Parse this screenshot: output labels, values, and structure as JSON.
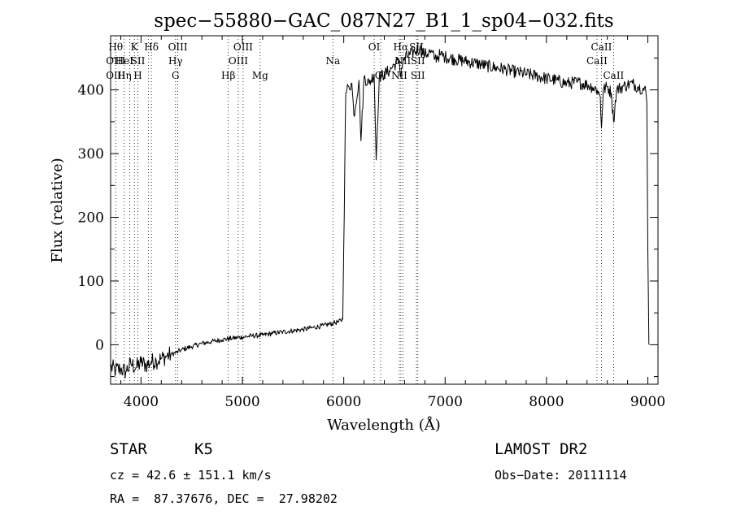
{
  "chart_data": {
    "type": "line",
    "title": "spec−55880−GAC_087N27_B1_1_sp04−032.fits",
    "xlabel": "Wavelength (Å)",
    "ylabel": "Flux (relative)",
    "xlim": [
      3700,
      9100
    ],
    "ylim": [
      -62,
      485
    ],
    "xticks": [
      4000,
      5000,
      6000,
      7000,
      8000,
      9000
    ],
    "xticklabels": [
      "4000",
      "5000",
      "6000",
      "7000",
      "8000",
      "9000"
    ],
    "yticks": [
      0,
      100,
      200,
      300,
      400
    ],
    "yticklabels": [
      "0",
      "100",
      "200",
      "300",
      "400"
    ],
    "grid": false,
    "series": [
      {
        "x": [
          3700,
          3750,
          3800,
          3850,
          3900,
          3950,
          4000,
          4050,
          4100,
          4150,
          4200,
          4250,
          4300,
          4350,
          4400,
          4500,
          4600,
          4700,
          4800,
          4900,
          5000,
          5100,
          5200,
          5300,
          5400,
          5500,
          5600,
          5700,
          5800,
          5900,
          5950,
          5990,
          6000,
          6010,
          6020,
          6030,
          6050,
          6080,
          6100,
          6150,
          6170,
          6200,
          6250,
          6300,
          6320,
          6350,
          6400,
          6450,
          6500,
          6550,
          6560,
          6570,
          6600,
          6650,
          6700,
          6750,
          6800,
          6850,
          6900,
          6950,
          7000,
          7100,
          7200,
          7300,
          7400,
          7500,
          7600,
          7700,
          7800,
          7900,
          8000,
          8100,
          8200,
          8300,
          8400,
          8450,
          8500,
          8530,
          8542,
          8560,
          8600,
          8640,
          8662,
          8690,
          8750,
          8800,
          8850,
          8900,
          8950,
          8980,
          8990,
          9000,
          9010
        ],
        "y": [
          -35,
          -40,
          -38,
          -42,
          -30,
          -36,
          -28,
          -32,
          -27,
          -25,
          -22,
          -18,
          -15,
          -12,
          -8,
          -3,
          2,
          5,
          8,
          10,
          12,
          14,
          15,
          18,
          20,
          22,
          24,
          27,
          30,
          34,
          36,
          40,
          150,
          280,
          395,
          400,
          405,
          410,
          360,
          415,
          320,
          420,
          410,
          425,
          290,
          420,
          425,
          430,
          440,
          445,
          420,
          435,
          450,
          455,
          460,
          465,
          455,
          460,
          450,
          455,
          452,
          448,
          445,
          442,
          438,
          435,
          432,
          428,
          425,
          422,
          418,
          415,
          410,
          412,
          408,
          405,
          400,
          390,
          340,
          400,
          405,
          395,
          350,
          400,
          405,
          408,
          410,
          405,
          402,
          398,
          380,
          150,
          0
        ]
      }
    ],
    "line_markers": [
      {
        "x": 3750,
        "labels": [
          "Hθ",
          "OIII",
          "OIII"
        ]
      },
      {
        "x": 3835,
        "labels": [
          "",
          "HeI",
          "Hη"
        ]
      },
      {
        "x": 3889,
        "labels": [
          "",
          "",
          ""
        ]
      },
      {
        "x": 3934,
        "labels": [
          "K",
          "",
          ""
        ]
      },
      {
        "x": 3969,
        "labels": [
          "",
          "SII",
          "H"
        ]
      },
      {
        "x": 4072,
        "labels": [
          "",
          "",
          ""
        ]
      },
      {
        "x": 4102,
        "labels": [
          "Hδ",
          "",
          ""
        ]
      },
      {
        "x": 4340,
        "labels": [
          "",
          "Hγ",
          "G"
        ]
      },
      {
        "x": 4363,
        "labels": [
          "OIII",
          "",
          ""
        ]
      },
      {
        "x": 4861,
        "labels": [
          "",
          "",
          "Hβ"
        ]
      },
      {
        "x": 4959,
        "labels": [
          "",
          "OIII",
          ""
        ]
      },
      {
        "x": 5007,
        "labels": [
          "OIII",
          "",
          ""
        ]
      },
      {
        "x": 5175,
        "labels": [
          "",
          "",
          "Mg"
        ]
      },
      {
        "x": 5893,
        "labels": [
          "",
          "Na",
          ""
        ]
      },
      {
        "x": 6300,
        "labels": [
          "OI",
          "",
          ""
        ]
      },
      {
        "x": 6364,
        "labels": [
          "",
          "",
          "OI"
        ]
      },
      {
        "x": 6548,
        "labels": [
          "",
          "",
          "NII"
        ]
      },
      {
        "x": 6563,
        "labels": [
          "Hα",
          "",
          ""
        ]
      },
      {
        "x": 6583,
        "labels": [
          "",
          "NII",
          ""
        ]
      },
      {
        "x": 6717,
        "labels": [
          "SII",
          "",
          ""
        ]
      },
      {
        "x": 6731,
        "labels": [
          "",
          "SII",
          "SII"
        ]
      },
      {
        "x": 8498,
        "labels": [
          "",
          "CaII",
          ""
        ]
      },
      {
        "x": 8542,
        "labels": [
          "CaII",
          "",
          ""
        ]
      },
      {
        "x": 8662,
        "labels": [
          "",
          "",
          "CaII"
        ]
      }
    ]
  },
  "info": {
    "class_label": "STAR",
    "subclass_label": "K5",
    "survey_label": "LAMOST DR2",
    "cz_text": "cz = 42.6 ± 151.1 km/s",
    "obs_date_text": "Obs−Date: 20111114",
    "coords_text": "RA =  87.37676, DEC =  27.98202"
  }
}
